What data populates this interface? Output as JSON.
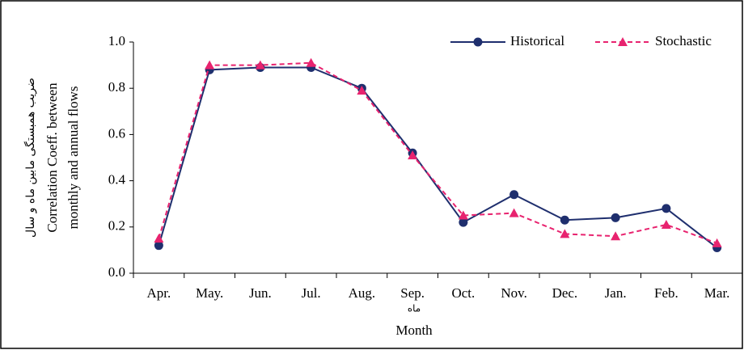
{
  "chart_data": {
    "type": "line",
    "y_label_lines": [
      "ضریب همبستگی مابین ماه و سال",
      "Correlation Coeff. between",
      "monthly and annual flows"
    ],
    "x_label_lines": [
      "ماه",
      "Month"
    ],
    "categories": [
      "Apr.",
      "May.",
      "Jun.",
      "Jul.",
      "Aug.",
      "Sep.",
      "Oct.",
      "Nov.",
      "Dec.",
      "Jan.",
      "Feb.",
      "Mar."
    ],
    "series": [
      {
        "name": "Historical",
        "color": "#1f2f6e",
        "marker": "circle",
        "dash": false,
        "values": [
          0.12,
          0.88,
          0.89,
          0.89,
          0.8,
          0.52,
          0.22,
          0.34,
          0.23,
          0.24,
          0.28,
          0.11
        ]
      },
      {
        "name": "Stochastic",
        "color": "#e8236f",
        "marker": "triangle",
        "dash": true,
        "values": [
          0.15,
          0.9,
          0.9,
          0.91,
          0.79,
          0.51,
          0.25,
          0.26,
          0.17,
          0.16,
          0.21,
          0.13
        ]
      }
    ],
    "ylim": [
      0,
      1
    ],
    "yticks": [
      {
        "value": 0,
        "label": "0.0"
      },
      0.2,
      0.4,
      0.6,
      0.8,
      {
        "value": 1,
        "label": "1.0"
      }
    ],
    "grid": false,
    "legend": "top-right"
  }
}
